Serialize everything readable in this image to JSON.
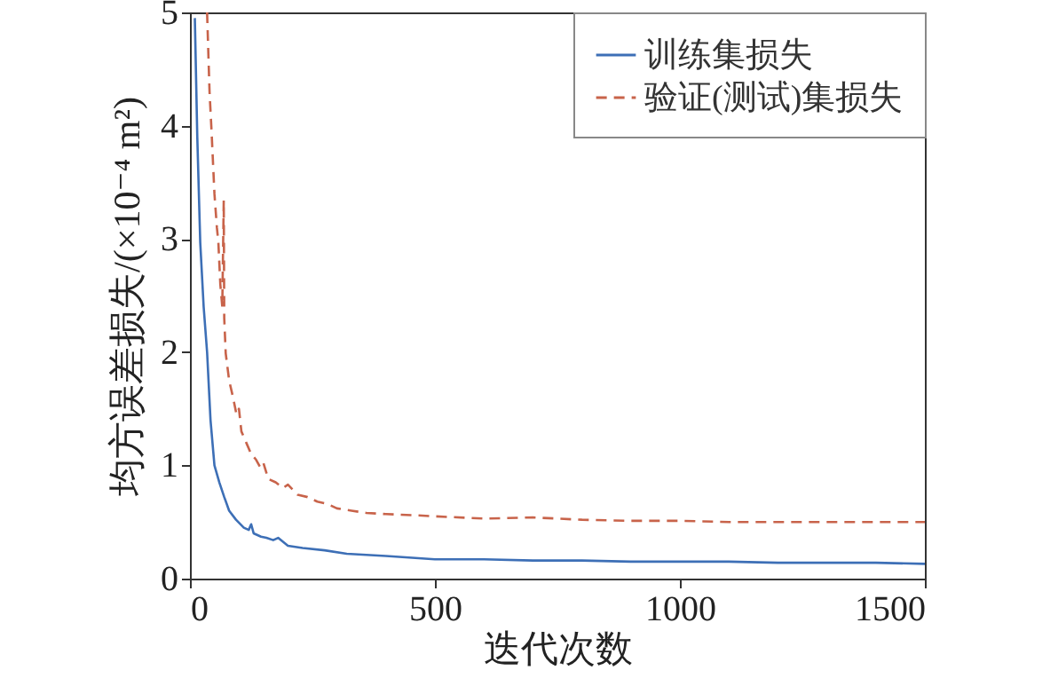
{
  "chart_data": {
    "type": "line",
    "xlabel": "迭代次数",
    "ylabel": "均方误差损失/(×10⁻⁴ m²)",
    "xlim": [
      0,
      1500
    ],
    "xticks": [
      0,
      500,
      1000,
      1500
    ],
    "ylim": [
      0,
      5
    ],
    "yticks": [
      0,
      1,
      2,
      3,
      4,
      5
    ],
    "legend": "top right",
    "grid": false,
    "series": [
      {
        "name": "训练集损失",
        "color": "#3d6fb6",
        "line_style": "solid",
        "x": [
          10,
          15,
          21,
          28,
          35,
          42,
          50,
          60,
          70,
          80,
          94,
          110,
          120,
          125,
          130,
          145,
          156,
          170,
          180,
          200,
          230,
          275,
          320,
          400,
          500,
          600,
          700,
          800,
          900,
          1000,
          1100,
          1200,
          1300,
          1400,
          1500
        ],
        "values": [
          4.95,
          3.9,
          2.97,
          2.4,
          2.0,
          1.4,
          1.0,
          0.85,
          0.72,
          0.6,
          0.52,
          0.45,
          0.43,
          0.48,
          0.4,
          0.37,
          0.36,
          0.34,
          0.36,
          0.29,
          0.27,
          0.25,
          0.22,
          0.2,
          0.17,
          0.17,
          0.16,
          0.16,
          0.15,
          0.15,
          0.15,
          0.14,
          0.14,
          0.14,
          0.13
        ]
      },
      {
        "name": "验证(测试)集损失",
        "color": "#c8634a",
        "line_style": "dashed",
        "x": [
          35,
          40,
          44,
          50,
          55,
          58,
          62,
          66,
          69,
          70,
          73,
          80,
          88,
          95,
          100,
          105,
          115,
          125,
          135,
          144,
          150,
          160,
          175,
          190,
          200,
          220,
          240,
          260,
          280,
          300,
          330,
          360,
          400,
          457,
          500,
          600,
          700,
          800,
          900,
          1000,
          1100,
          1200,
          1300,
          1400,
          1500
        ],
        "values": [
          5.0,
          4.3,
          3.96,
          3.4,
          3.1,
          2.97,
          2.6,
          2.4,
          3.34,
          2.3,
          1.99,
          1.75,
          1.6,
          1.45,
          1.5,
          1.3,
          1.2,
          1.1,
          1.05,
          0.98,
          1.02,
          0.88,
          0.85,
          0.8,
          0.83,
          0.74,
          0.72,
          0.68,
          0.66,
          0.62,
          0.6,
          0.58,
          0.57,
          0.56,
          0.55,
          0.53,
          0.54,
          0.52,
          0.51,
          0.51,
          0.5,
          0.5,
          0.5,
          0.5,
          0.5
        ]
      }
    ]
  }
}
